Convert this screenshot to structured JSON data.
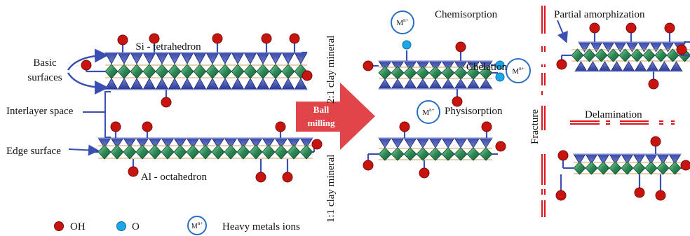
{
  "colors": {
    "tetrahedron": "#33409a",
    "tetrahedron_light": "#5f72c8",
    "octahedron": "#1f7a4d",
    "octahedron_light": "#6cc08a",
    "hydroxyl": "#c7140f",
    "oxygen": "#1ea7e8",
    "bond": "#3a4fb3",
    "arrow": "#e0454a",
    "fracture": "#e0141b"
  },
  "icons": {
    "hydroxyl": "red-circle-icon",
    "oxygen": "blue-circle-icon",
    "metal_ion": "m-ion-circle-icon"
  },
  "labels": {
    "si_tetrahedron": "Si - tetrahedron",
    "al_octahedron": "Al - octahedron",
    "basic_surfaces_line1": "Basic",
    "basic_surfaces_line2": "surfaces",
    "interlayer_space": "Interlayer space",
    "edge_surface": "Edge surface",
    "clay_21": "2:1 clay mineral",
    "clay_11": "1:1 clay mineral",
    "ball_milling_line1": "Ball",
    "ball_milling_line2": "milling",
    "chemisorption": "Chemisorption",
    "chelation": "Chelation",
    "physisorption": "Physisorption",
    "partial_amorphization": "Partial amorphization",
    "delamination": "Delamination",
    "fracture": "Fracture",
    "metal_ion_base": "M",
    "metal_ion_sup": "n+"
  },
  "legend": [
    {
      "icon": "red-circle-icon",
      "label": "OH"
    },
    {
      "icon": "blue-circle-icon",
      "label": "O"
    },
    {
      "icon": "m-ion-circle-icon",
      "label": "Heavy metals ions"
    }
  ]
}
